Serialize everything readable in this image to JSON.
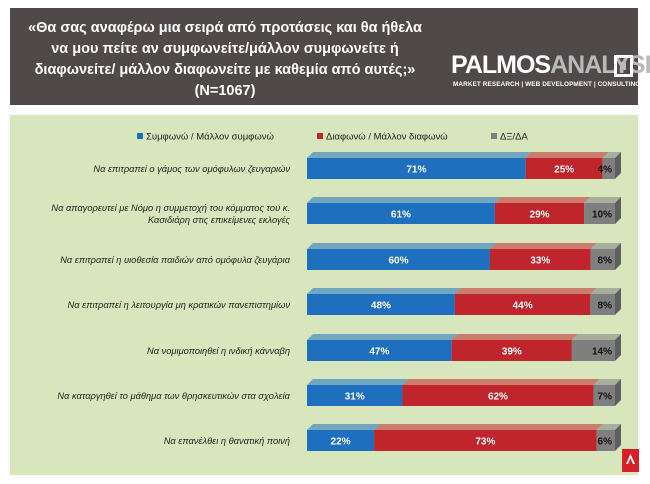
{
  "header": {
    "question": "«Θα σας αναφέρω μια σειρά από προτάσεις και θα ήθελα να μου πείτε αν συμφωνείτε/μάλλον συμφωνείτε ή διαφωνείτε/ μάλλον διαφωνείτε με καθεμία από αυτές;»",
    "sample": "(N=1067)",
    "logo_part1": "PALMOS",
    "logo_part2": "ANALYSIS",
    "logo_tagline": "MARKET RESEARCH | WEB DEVELOPMENT | CONSULTING"
  },
  "colors": {
    "agree": "#1f6fbf",
    "disagree": "#c0242c",
    "dk": "#7f7f7f",
    "background": "#d8e6bd"
  },
  "chart_data": {
    "type": "bar",
    "orientation": "horizontal",
    "stacked": true,
    "percent_total": true,
    "legend_position": "top-right",
    "categories": [
      "Να επιτραπεί ο γάμος των ομόφυλων ζευγαριών",
      "Να απαγορευτεί με Νόμο η συμμετοχή του κόμματος του κ. Κασιδιάρη στις επικείμενες εκλογές",
      "Να επιτραπεί η υιοθεσία παιδιών από ομόφυλα ζευγάρια",
      "Να επιτραπεί η λειτουργία μη κρατικών πανεπιστημίων",
      "Να νομιμοποιηθεί η ινδική κάνναβη",
      "Να καταργηθεί το μάθημα των θρησκευτικών στα σχολεία",
      "Να επανέλθει η θανατική ποινή"
    ],
    "series": [
      {
        "name": "Συμφωνώ / Μάλλον συμφωνώ",
        "color": "#1f6fbf",
        "values": [
          71,
          61,
          60,
          48,
          47,
          31,
          22
        ]
      },
      {
        "name": "Διαφωνώ / Μάλλον διαφωνώ",
        "color": "#c0242c",
        "values": [
          25,
          29,
          33,
          44,
          39,
          62,
          73
        ]
      },
      {
        "name": "ΔΞ/ΔΑ",
        "color": "#7f7f7f",
        "values": [
          4,
          10,
          8,
          8,
          14,
          7,
          6
        ]
      }
    ],
    "value_suffix": "%"
  }
}
